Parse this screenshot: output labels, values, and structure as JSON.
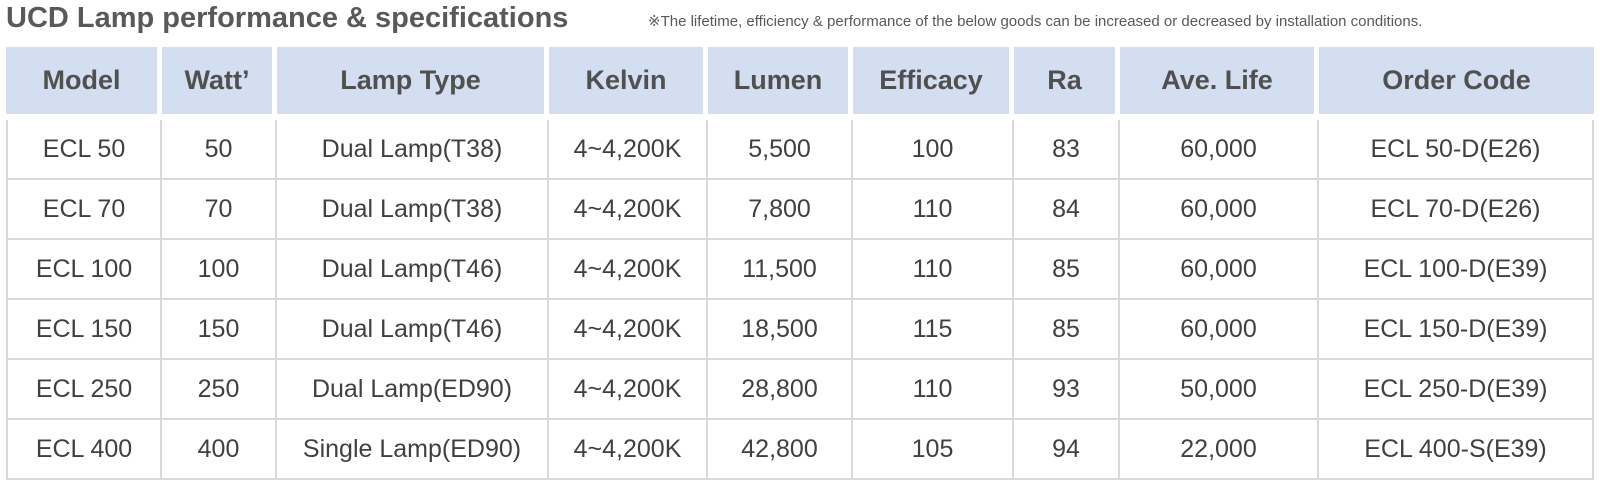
{
  "title": "UCD Lamp performance & specifications",
  "note": "※The lifetime, efficiency & performance of the below goods can be increased or decreased by installation  conditions.",
  "colors": {
    "header_background": "#d3dff0",
    "text": "#404040",
    "grid": "#d9d9d9"
  },
  "table": {
    "headers": [
      "Model",
      "Watt’",
      "Lamp Type",
      "Kelvin",
      "Lumen",
      "Efficacy",
      "Ra",
      "Ave. Life",
      "Order Code"
    ],
    "rows": [
      [
        "ECL 50",
        "50",
        "Dual Lamp(T38)",
        "4~4,200K",
        "5,500",
        "100",
        "83",
        "60,000",
        "ECL 50-D(E26)"
      ],
      [
        "ECL 70",
        "70",
        "Dual Lamp(T38)",
        "4~4,200K",
        "7,800",
        "110",
        "84",
        "60,000",
        "ECL 70-D(E26)"
      ],
      [
        "ECL 100",
        "100",
        "Dual Lamp(T46)",
        "4~4,200K",
        "11,500",
        "110",
        "85",
        "60,000",
        "ECL 100-D(E39)"
      ],
      [
        "ECL 150",
        "150",
        "Dual Lamp(T46)",
        "4~4,200K",
        "18,500",
        "115",
        "85",
        "60,000",
        "ECL 150-D(E39)"
      ],
      [
        "ECL 250",
        "250",
        "Dual Lamp(ED90)",
        "4~4,200K",
        "28,800",
        "110",
        "93",
        "50,000",
        "ECL 250-D(E39)"
      ],
      [
        "ECL 400",
        "400",
        "Single Lamp(ED90)",
        "4~4,200K",
        "42,800",
        "105",
        "94",
        "22,000",
        "ECL 400-S(E39)"
      ]
    ]
  }
}
